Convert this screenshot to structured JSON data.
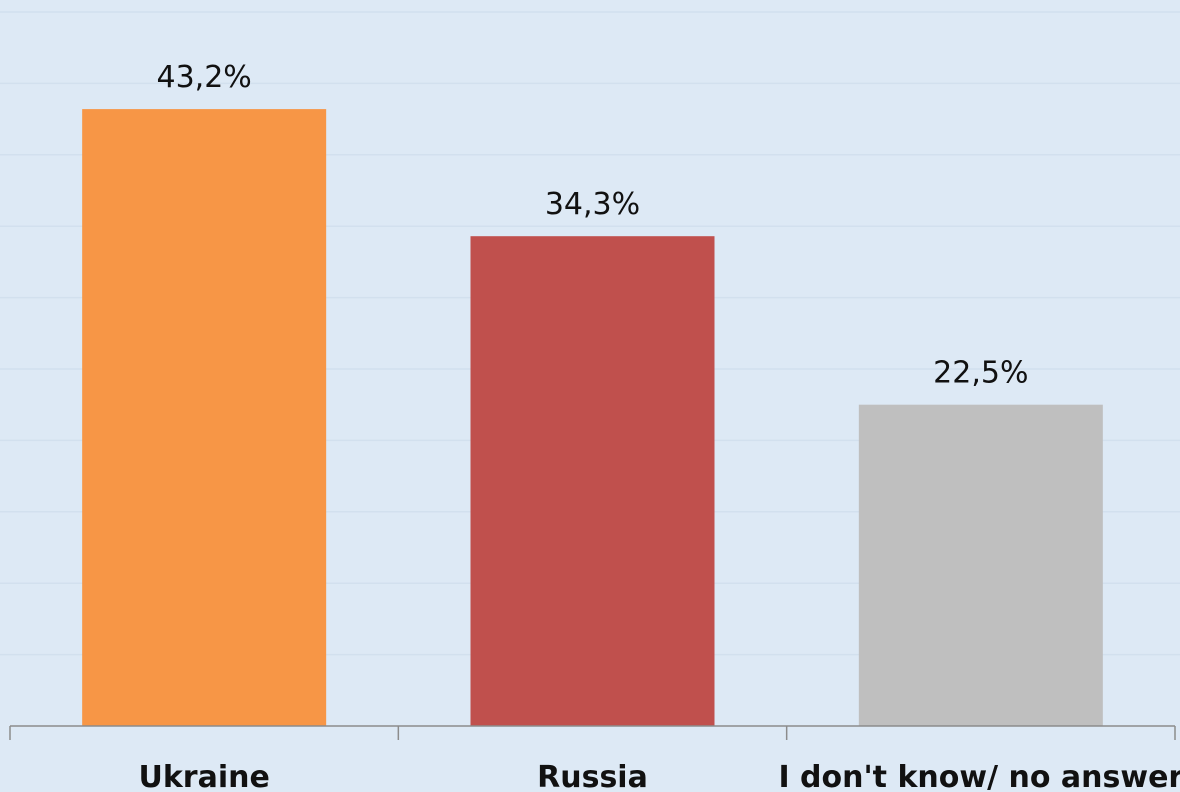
{
  "chart_data": {
    "type": "bar",
    "categories": [
      "Ukraine",
      "Russia",
      "I don't know/ no answer"
    ],
    "values": [
      43.2,
      34.3,
      22.5
    ],
    "value_labels": [
      "43,2%",
      "34,3%",
      "22,5%"
    ],
    "bar_colors": [
      "#f79646",
      "#c0504d",
      "#bfbfbf"
    ],
    "ylim": [
      0,
      50
    ],
    "grid": true,
    "title": "",
    "xlabel": "",
    "ylabel": ""
  }
}
